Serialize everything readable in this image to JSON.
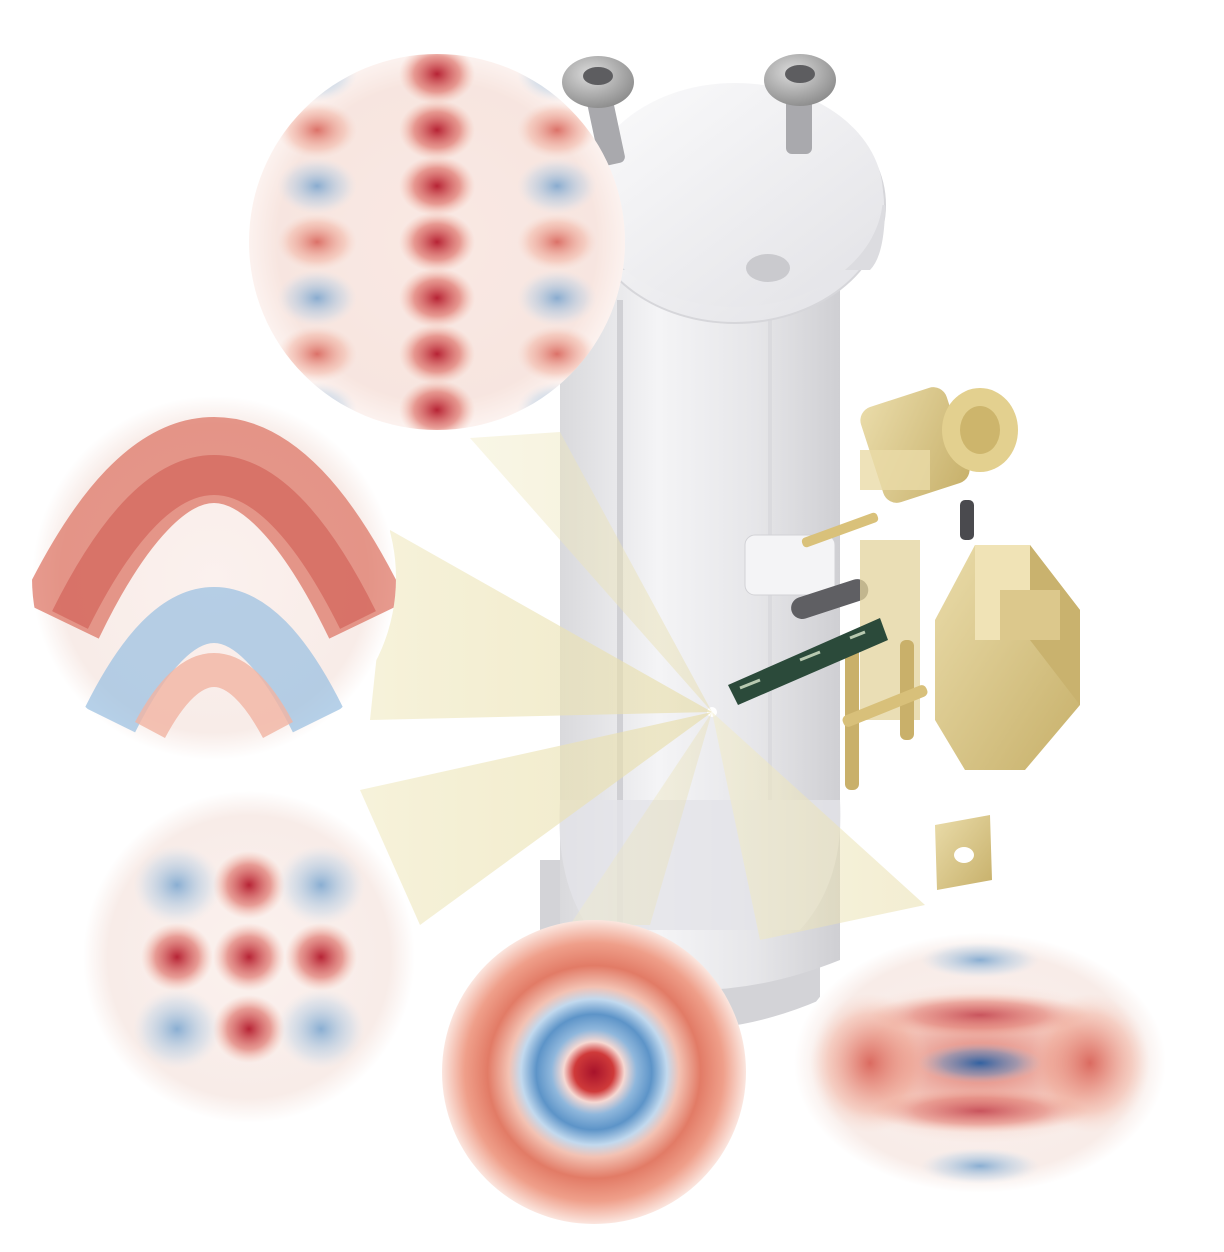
{
  "figure": {
    "subject": "cryogenic-resonator-cavity-with-wigner-function-insets",
    "colors": {
      "positive": "#c0392b",
      "negative": "#2e6fb0",
      "cavity": "#e8e8ea",
      "brass": "#d8c48a",
      "cone": "#efe6b8",
      "chip": "#2b4a3a"
    },
    "insets": [
      {
        "name": "wigner-inset-grid-vertical",
        "pattern": "striped-lattice"
      },
      {
        "name": "wigner-inset-cat-arc",
        "pattern": "arcs"
      },
      {
        "name": "wigner-inset-grid-3x3",
        "pattern": "lattice"
      },
      {
        "name": "wigner-inset-fock",
        "pattern": "rings"
      },
      {
        "name": "wigner-inset-squeezed",
        "pattern": "elliptical"
      }
    ]
  }
}
